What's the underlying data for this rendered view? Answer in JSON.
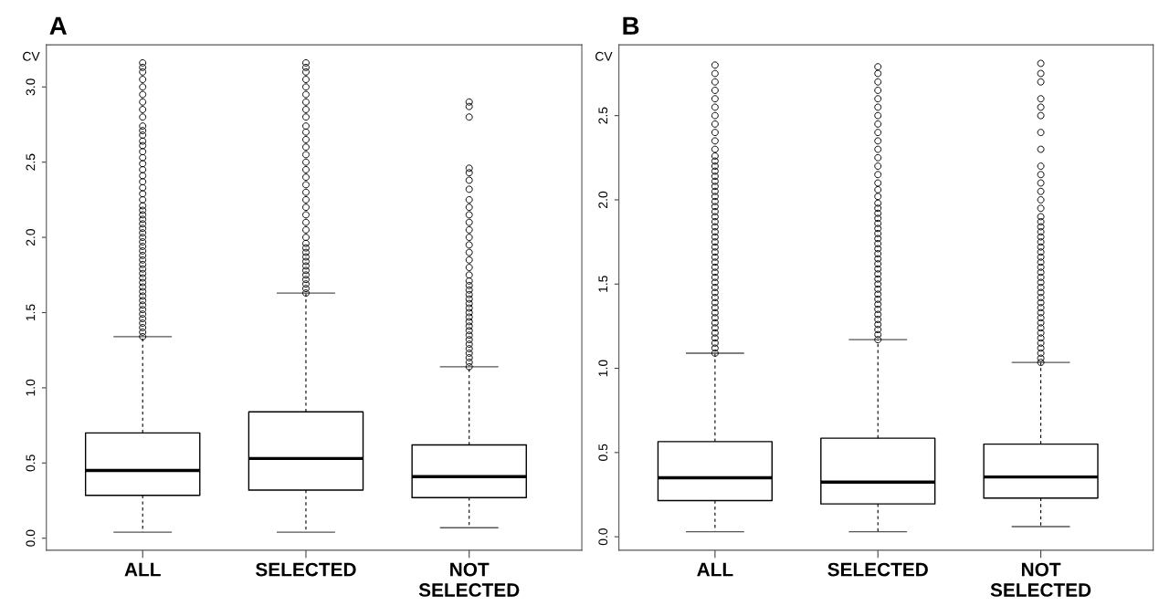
{
  "chart_data": [
    {
      "type": "box",
      "title": "A",
      "ylabel": "CV",
      "categories": [
        "ALL",
        "SELECTED",
        "NOT\nSELECTED"
      ],
      "ylim": [
        -0.08,
        3.28
      ],
      "yticks": [
        {
          "value": 0,
          "label": "0.0"
        },
        {
          "value": 0.5,
          "label": "0.5"
        },
        {
          "value": 1,
          "label": "1.0"
        },
        {
          "value": 1.5,
          "label": "1.5"
        },
        {
          "value": 2,
          "label": "2.0"
        },
        {
          "value": 2.5,
          "label": "2.5"
        },
        {
          "value": 3,
          "label": "3.0"
        }
      ],
      "grid": false,
      "marker": "circle",
      "boxes": [
        {
          "low": 0.04,
          "q1": 0.285,
          "median": 0.45,
          "q3": 0.7,
          "high": 1.34,
          "outliers": [
            1.34,
            1.37,
            1.4,
            1.43,
            1.46,
            1.49,
            1.52,
            1.55,
            1.58,
            1.61,
            1.64,
            1.67,
            1.7,
            1.73,
            1.76,
            1.79,
            1.82,
            1.85,
            1.88,
            1.91,
            1.94,
            1.97,
            2.0,
            2.03,
            2.06,
            2.09,
            2.12,
            2.15,
            2.18,
            2.21,
            2.25,
            2.29,
            2.33,
            2.37,
            2.41,
            2.45,
            2.49,
            2.53,
            2.57,
            2.61,
            2.64,
            2.68,
            2.71,
            2.74,
            2.8,
            2.85,
            2.9,
            2.95,
            3.0,
            3.05,
            3.1,
            3.13,
            3.16
          ]
        },
        {
          "low": 0.04,
          "q1": 0.32,
          "median": 0.53,
          "q3": 0.84,
          "high": 1.63,
          "outliers": [
            1.63,
            1.66,
            1.69,
            1.72,
            1.75,
            1.78,
            1.81,
            1.84,
            1.87,
            1.9,
            1.93,
            1.96,
            2.0,
            2.05,
            2.1,
            2.15,
            2.2,
            2.25,
            2.3,
            2.35,
            2.4,
            2.45,
            2.5,
            2.55,
            2.6,
            2.65,
            2.7,
            2.74,
            2.8,
            2.85,
            2.9,
            2.95,
            3.0,
            3.05,
            3.1,
            3.13,
            3.16
          ]
        },
        {
          "low": 0.07,
          "q1": 0.27,
          "median": 0.41,
          "q3": 0.62,
          "high": 1.14,
          "outliers": [
            1.14,
            1.17,
            1.2,
            1.23,
            1.26,
            1.29,
            1.32,
            1.35,
            1.38,
            1.41,
            1.44,
            1.47,
            1.5,
            1.53,
            1.56,
            1.59,
            1.62,
            1.65,
            1.68,
            1.71,
            1.75,
            1.8,
            1.85,
            1.9,
            1.95,
            2.0,
            2.05,
            2.1,
            2.15,
            2.2,
            2.25,
            2.32,
            2.38,
            2.43,
            2.46,
            2.8,
            2.87,
            2.9
          ]
        }
      ]
    },
    {
      "type": "box",
      "title": "B",
      "ylabel": "CV",
      "categories": [
        "ALL",
        "SELECTED",
        "NOT\nSELECTED"
      ],
      "ylim": [
        -0.08,
        2.92
      ],
      "yticks": [
        {
          "value": 0,
          "label": "0.0"
        },
        {
          "value": 0.5,
          "label": "0.5"
        },
        {
          "value": 1,
          "label": "1.0"
        },
        {
          "value": 1.5,
          "label": "1.5"
        },
        {
          "value": 2,
          "label": "2.0"
        },
        {
          "value": 2.5,
          "label": "2.5"
        }
      ],
      "grid": false,
      "marker": "circle",
      "boxes": [
        {
          "low": 0.03,
          "q1": 0.215,
          "median": 0.35,
          "q3": 0.565,
          "high": 1.09,
          "outliers": [
            1.09,
            1.12,
            1.15,
            1.18,
            1.21,
            1.24,
            1.27,
            1.3,
            1.33,
            1.36,
            1.39,
            1.42,
            1.45,
            1.48,
            1.51,
            1.54,
            1.57,
            1.6,
            1.63,
            1.66,
            1.69,
            1.72,
            1.75,
            1.78,
            1.81,
            1.84,
            1.87,
            1.9,
            1.93,
            1.96,
            1.99,
            2.02,
            2.05,
            2.08,
            2.11,
            2.14,
            2.17,
            2.2,
            2.23,
            2.26,
            2.3,
            2.35,
            2.4,
            2.45,
            2.5,
            2.55,
            2.6,
            2.65,
            2.7,
            2.75,
            2.8
          ]
        },
        {
          "low": 0.03,
          "q1": 0.195,
          "median": 0.325,
          "q3": 0.585,
          "high": 1.17,
          "outliers": [
            1.17,
            1.2,
            1.23,
            1.26,
            1.29,
            1.32,
            1.35,
            1.38,
            1.41,
            1.44,
            1.47,
            1.5,
            1.53,
            1.56,
            1.59,
            1.62,
            1.65,
            1.68,
            1.71,
            1.74,
            1.77,
            1.8,
            1.83,
            1.86,
            1.89,
            1.92,
            1.95,
            1.98,
            2.02,
            2.06,
            2.1,
            2.15,
            2.2,
            2.25,
            2.3,
            2.35,
            2.4,
            2.45,
            2.5,
            2.55,
            2.6,
            2.65,
            2.7,
            2.75,
            2.79
          ]
        },
        {
          "low": 0.06,
          "q1": 0.23,
          "median": 0.355,
          "q3": 0.55,
          "high": 1.035,
          "outliers": [
            1.035,
            1.06,
            1.09,
            1.12,
            1.15,
            1.18,
            1.21,
            1.24,
            1.27,
            1.3,
            1.33,
            1.36,
            1.39,
            1.42,
            1.45,
            1.48,
            1.51,
            1.54,
            1.57,
            1.6,
            1.63,
            1.66,
            1.69,
            1.72,
            1.75,
            1.78,
            1.81,
            1.84,
            1.87,
            1.9,
            1.95,
            2.0,
            2.05,
            2.1,
            2.15,
            2.2,
            2.3,
            2.4,
            2.5,
            2.55,
            2.6,
            2.7,
            2.75,
            2.81
          ]
        }
      ]
    }
  ]
}
